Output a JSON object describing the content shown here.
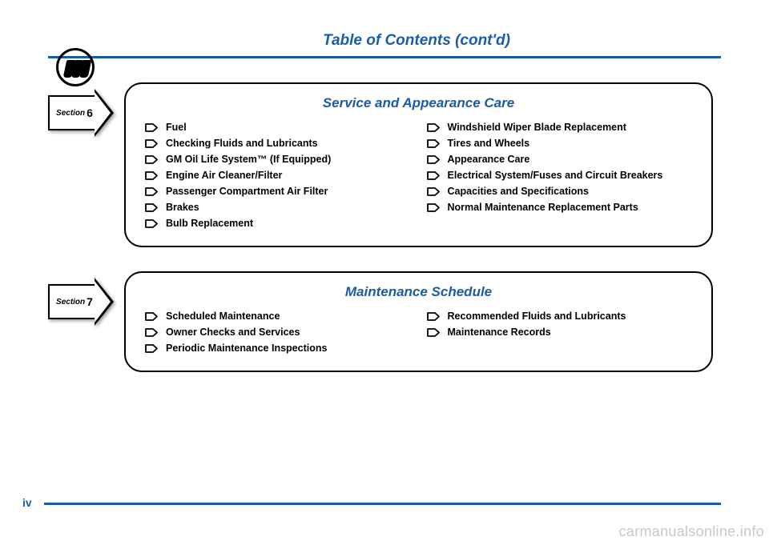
{
  "page": {
    "title": "Table of Contents (cont'd)",
    "number": "iv",
    "watermark": "carmanualsonline.info"
  },
  "sections": [
    {
      "badge_label": "Section",
      "badge_number": "6",
      "title": "Service and Appearance Care",
      "col1": [
        "Fuel",
        "Checking Fluids and Lubricants",
        "GM Oil Life System™ (If Equipped)",
        "Engine Air Cleaner/Filter",
        "Passenger Compartment Air Filter",
        "Brakes",
        "Bulb Replacement"
      ],
      "col2": [
        "Windshield Wiper Blade Replacement",
        "Tires and Wheels",
        "Appearance Care",
        "Electrical System/Fuses and Circuit Breakers",
        "Capacities and Specifications",
        "Normal Maintenance Replacement Parts"
      ]
    },
    {
      "badge_label": "Section",
      "badge_number": "7",
      "title": "Maintenance Schedule",
      "col1": [
        "Scheduled Maintenance",
        "Owner Checks and Services",
        "Periodic Maintenance Inspections"
      ],
      "col2": [
        "Recommended Fluids and Lubricants",
        "Maintenance Records"
      ]
    }
  ],
  "colors": {
    "accent": "#1a5ca8",
    "text": "#000000",
    "background": "#ffffff",
    "watermark": "#c8c8c8"
  }
}
